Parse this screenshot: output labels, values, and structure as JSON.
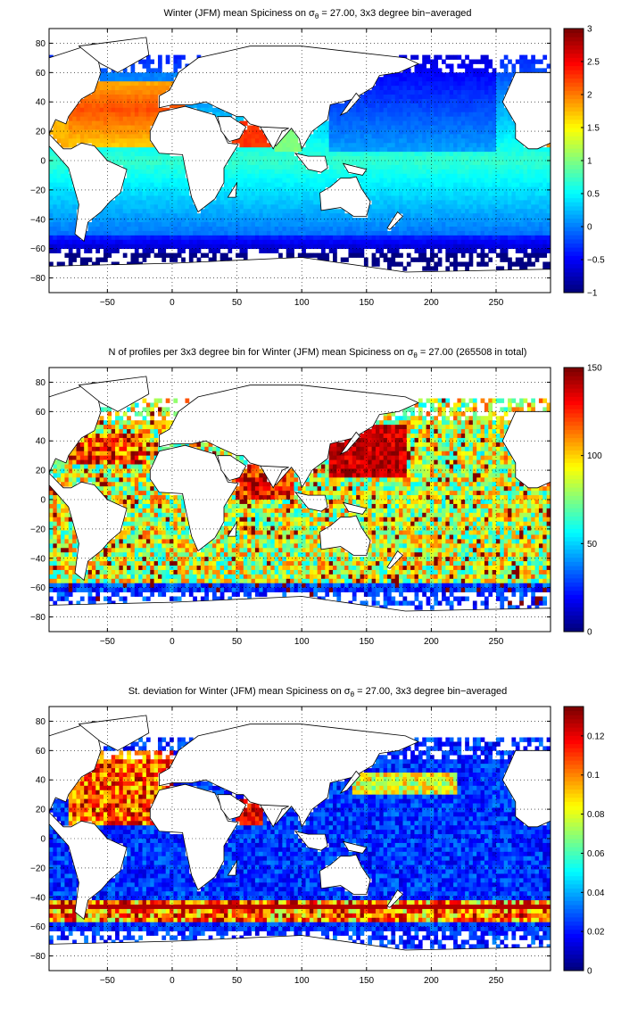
{
  "chart_data": [
    {
      "type": "heatmap",
      "title_pre": "Winter (JFM) mean Spiciness on ",
      "title_sym": "σ",
      "title_sub": "θ",
      "title_post": " = 27.00, 3x3 degree bin−averaged",
      "x_ticks": [
        "−50",
        "0",
        "50",
        "100",
        "150",
        "200",
        "250"
      ],
      "x_tick_values": [
        -50,
        0,
        50,
        100,
        150,
        200,
        250
      ],
      "y_ticks": [
        "80",
        "60",
        "40",
        "20",
        "0",
        "−20",
        "−40",
        "−60",
        "−80"
      ],
      "y_tick_values": [
        80,
        60,
        40,
        20,
        0,
        -20,
        -40,
        -60,
        -80
      ],
      "xlim": [
        -95,
        292
      ],
      "ylim": [
        -90,
        90
      ],
      "grid": true,
      "colormap": "jet",
      "colorbar_ticks": [
        "3",
        "2.5",
        "2",
        "1.5",
        "1",
        "0.5",
        "0",
        "−0.5",
        "−1"
      ],
      "colorbar_values": [
        3,
        2.5,
        2,
        1.5,
        1,
        0.5,
        0,
        -0.5,
        -1
      ],
      "clim": [
        -1,
        3
      ],
      "field": "spiciness"
    },
    {
      "type": "heatmap",
      "title_pre": "N of profiles per 3x3 degree bin for Winter (JFM) mean Spiciness on ",
      "title_sym": "σ",
      "title_sub": "θ",
      "title_post": " = 27.00 (265508 in total)",
      "x_ticks": [
        "−50",
        "0",
        "50",
        "100",
        "150",
        "200",
        "250"
      ],
      "x_tick_values": [
        -50,
        0,
        50,
        100,
        150,
        200,
        250
      ],
      "y_ticks": [
        "80",
        "60",
        "40",
        "20",
        "0",
        "−20",
        "−40",
        "−60",
        "−80"
      ],
      "y_tick_values": [
        80,
        60,
        40,
        20,
        0,
        -20,
        -40,
        -60,
        -80
      ],
      "xlim": [
        -95,
        292
      ],
      "ylim": [
        -90,
        90
      ],
      "grid": true,
      "colormap": "jet",
      "colorbar_ticks": [
        "150",
        "100",
        "50",
        "0"
      ],
      "colorbar_values": [
        150,
        100,
        50,
        0
      ],
      "clim": [
        0,
        150
      ],
      "field": "count"
    },
    {
      "type": "heatmap",
      "title_pre": "St. deviation for Winter (JFM) mean Spiciness on ",
      "title_sym": "σ",
      "title_sub": "θ",
      "title_post": " = 27.00, 3x3 degree bin−averaged",
      "x_ticks": [
        "−50",
        "0",
        "50",
        "100",
        "150",
        "200",
        "250"
      ],
      "x_tick_values": [
        -50,
        0,
        50,
        100,
        150,
        200,
        250
      ],
      "y_ticks": [
        "80",
        "60",
        "40",
        "20",
        "0",
        "−20",
        "−40",
        "−60",
        "−80"
      ],
      "y_tick_values": [
        80,
        60,
        40,
        20,
        0,
        -20,
        -40,
        -60,
        -80
      ],
      "xlim": [
        -95,
        292
      ],
      "ylim": [
        -90,
        90
      ],
      "grid": true,
      "colormap": "jet",
      "colorbar_ticks": [
        "0.12",
        "0.1",
        "0.08",
        "0.06",
        "0.04",
        "0.02",
        "0"
      ],
      "colorbar_values": [
        0.12,
        0.1,
        0.08,
        0.06,
        0.04,
        0.02,
        0
      ],
      "clim": [
        0,
        0.135
      ],
      "field": "stdev"
    }
  ]
}
